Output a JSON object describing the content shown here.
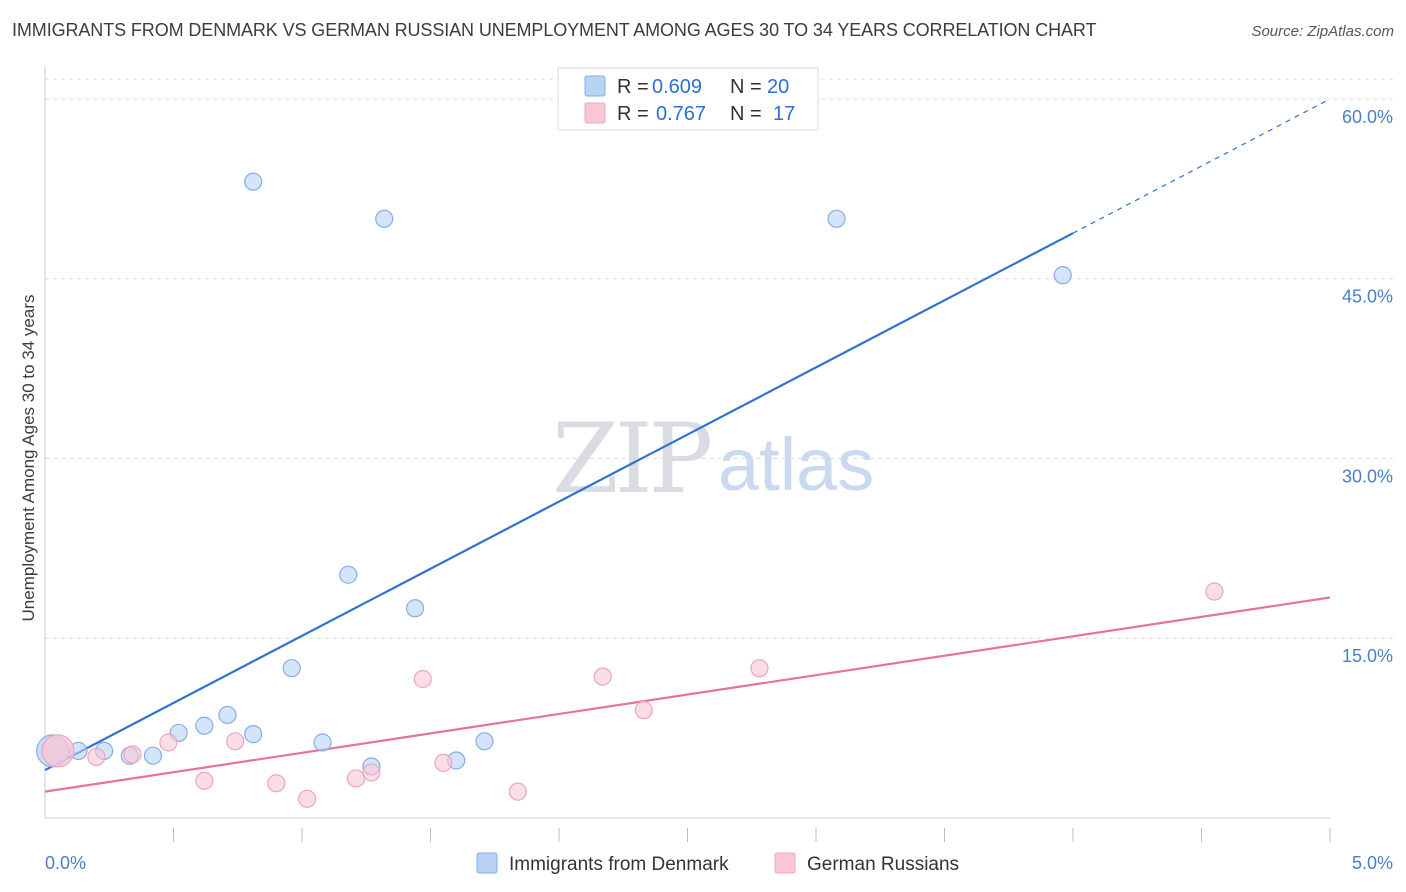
{
  "title": "IMMIGRANTS FROM DENMARK VS GERMAN RUSSIAN UNEMPLOYMENT AMONG AGES 30 TO 34 YEARS CORRELATION CHART",
  "source": "Source: ZipAtlas.com",
  "watermark": {
    "zip": "ZIP",
    "atlas": "atlas"
  },
  "colors": {
    "blue_fill": "#b9d3f5",
    "blue_stroke": "#86aee6",
    "blue_line": "#2f72d0",
    "pink_fill": "#f8c6d6",
    "pink_stroke": "#eea5bf",
    "pink_line": "#e5739c",
    "grid": "#dcdcdc",
    "axis_text": "#4a7fc7"
  },
  "legend": {
    "rows": [
      {
        "r_label": "R =",
        "r_value": "0.609",
        "n_label": "N =",
        "n_value": "20"
      },
      {
        "r_label": "R =",
        "r_value": "0.767",
        "n_label": "N =",
        "n_value": "17"
      }
    ]
  },
  "chart_data": {
    "type": "scatter",
    "title": "IMMIGRANTS FROM DENMARK VS GERMAN RUSSIAN UNEMPLOYMENT AMONG AGES 30 TO 34 YEARS CORRELATION CHART",
    "xlabel": "",
    "ylabel": "Unemployment Among Ages 30 to 34 years",
    "xlim": [
      0,
      5
    ],
    "ylim": [
      0,
      62
    ],
    "x_tick_labels": [
      "0.0%",
      "5.0%"
    ],
    "y_tick_labels": [
      "15.0%",
      "30.0%",
      "45.0%",
      "60.0%"
    ],
    "y_ticks": [
      15,
      30,
      45,
      60
    ],
    "x_minor_ticks": [
      0.5,
      1.0,
      1.5,
      2.0,
      2.5,
      3.0,
      3.5,
      4.0,
      4.5,
      5.0
    ],
    "series": [
      {
        "name": "Immigrants from Denmark",
        "color": "blue",
        "points": [
          [
            0.03,
            5.6
          ],
          [
            0.13,
            5.6
          ],
          [
            0.23,
            5.6
          ],
          [
            0.33,
            5.2
          ],
          [
            0.42,
            5.2
          ],
          [
            0.52,
            7.1
          ],
          [
            0.62,
            7.7
          ],
          [
            0.71,
            8.6
          ],
          [
            0.81,
            7.0
          ],
          [
            0.96,
            12.5
          ],
          [
            1.08,
            6.3
          ],
          [
            1.18,
            20.3
          ],
          [
            1.27,
            4.3
          ],
          [
            1.44,
            17.5
          ],
          [
            1.6,
            4.8
          ],
          [
            1.71,
            6.4
          ],
          [
            0.81,
            53.1
          ],
          [
            1.32,
            50.0
          ],
          [
            3.08,
            50.0
          ],
          [
            3.96,
            45.3
          ]
        ],
        "trend": {
          "x0": 0.0,
          "y0": 4.0,
          "x1": 5.0,
          "y1": 60.0,
          "solid_until_x": 4.0
        }
      },
      {
        "name": "German Russians",
        "color": "pink",
        "points": [
          [
            0.05,
            5.6
          ],
          [
            0.2,
            5.1
          ],
          [
            0.34,
            5.3
          ],
          [
            0.48,
            6.3
          ],
          [
            0.62,
            3.1
          ],
          [
            0.74,
            6.4
          ],
          [
            0.9,
            2.9
          ],
          [
            1.02,
            1.6
          ],
          [
            1.21,
            3.3
          ],
          [
            1.27,
            3.8
          ],
          [
            1.47,
            11.6
          ],
          [
            1.55,
            4.6
          ],
          [
            1.84,
            2.2
          ],
          [
            2.17,
            11.8
          ],
          [
            2.33,
            9.0
          ],
          [
            2.78,
            12.5
          ],
          [
            4.55,
            18.9
          ]
        ],
        "trend": {
          "x0": 0.0,
          "y0": 2.2,
          "x1": 5.0,
          "y1": 18.4,
          "solid_until_x": 5.0
        }
      }
    ],
    "legend_position": "top-center",
    "grid": true
  }
}
